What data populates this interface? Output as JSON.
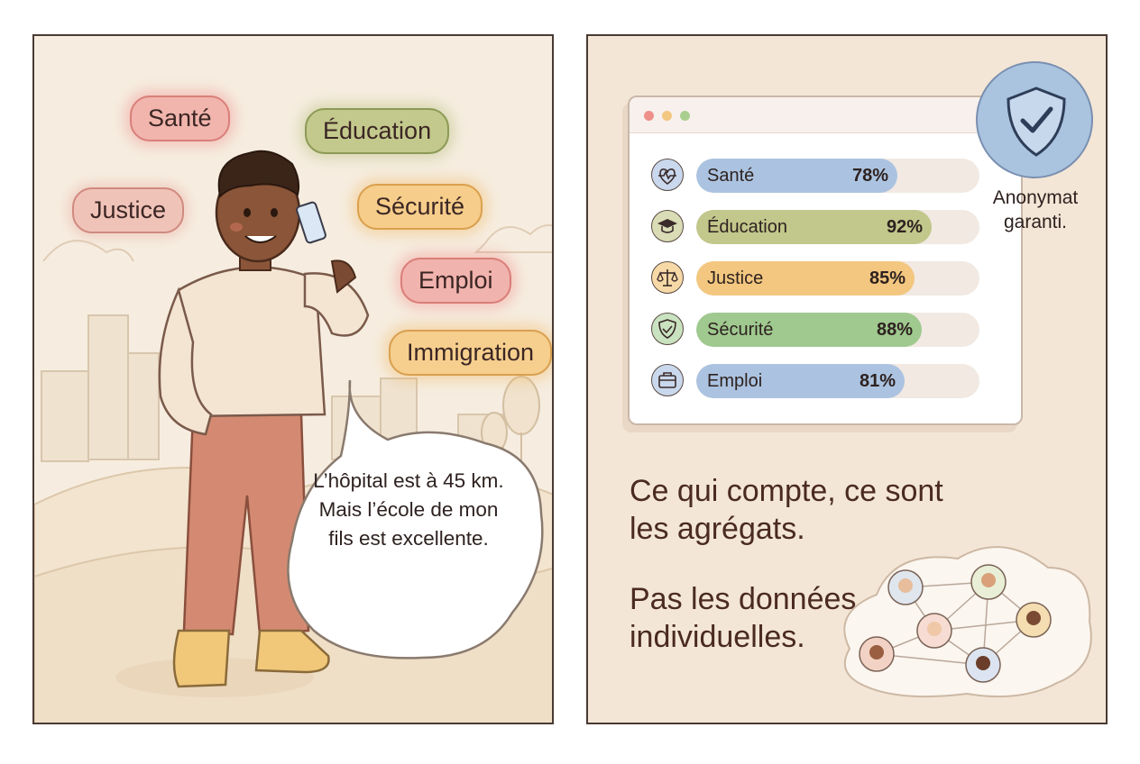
{
  "left_panel": {
    "topics": {
      "sante": "Santé",
      "education": "Éducation",
      "justice": "Justice",
      "securite": "Sécurité",
      "emploi": "Emploi",
      "immigration": "Immigration"
    },
    "speech_bubble": "L’hôpital est à 45 km. Mais l’école de mon fils est excellente."
  },
  "right_panel": {
    "stats": [
      {
        "label": "Santé",
        "value_text": "78%",
        "value": 78,
        "color": "#abc3e0",
        "icon": "heartbeat-icon"
      },
      {
        "label": "Éducation",
        "value_text": "92%",
        "value": 92,
        "color": "#c2c78b",
        "icon": "graduation-cap-icon"
      },
      {
        "label": "Justice",
        "value_text": "85%",
        "value": 85,
        "color": "#f3c77f",
        "icon": "scales-icon"
      },
      {
        "label": "Sécurité",
        "value_text": "88%",
        "value": 88,
        "color": "#9fc98f",
        "icon": "shield-icon"
      },
      {
        "label": "Emploi",
        "value_text": "81%",
        "value": 81,
        "color": "#abc3e0",
        "icon": "briefcase-icon"
      }
    ],
    "badge_text": "Anonymat garanti.",
    "headline_1": "Ce qui compte, ce sont les agrégats.",
    "headline_2": "Pas les données individuelles."
  }
}
